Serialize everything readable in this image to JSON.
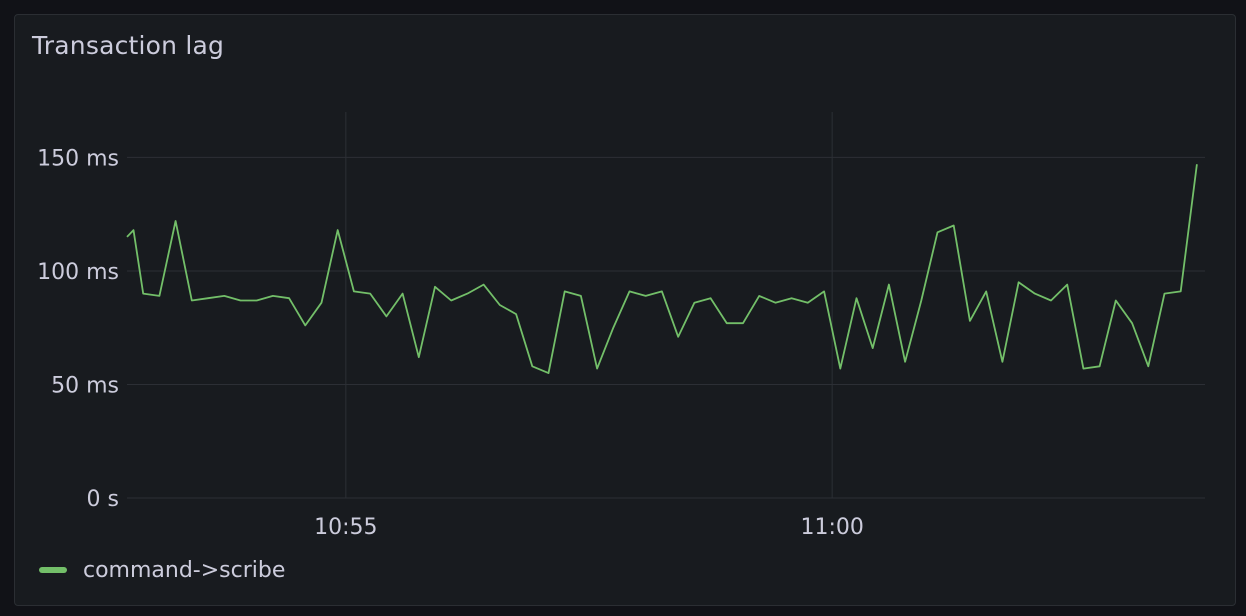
{
  "panel": {
    "title": "Transaction lag"
  },
  "colors": {
    "series": "#73bf69",
    "grid": "#2c2f35",
    "text": "#ccccdc"
  },
  "chart_data": {
    "type": "line",
    "title": "Transaction lag",
    "xlabel": "",
    "ylabel": "",
    "ylim": [
      0,
      170
    ],
    "yticks": [
      {
        "value": 0,
        "label": "0 s"
      },
      {
        "value": 50,
        "label": "50 ms"
      },
      {
        "value": 100,
        "label": "100 ms"
      },
      {
        "value": 150,
        "label": "150 ms"
      }
    ],
    "xlim": [
      "10:52:45",
      "10:63:50"
    ],
    "xticks": [
      {
        "value": "10:55",
        "label": "10:55"
      },
      {
        "value": "11:00",
        "label": "11:00"
      }
    ],
    "grid": true,
    "legend": "bottom-left",
    "series": [
      {
        "name": "command->scribe",
        "color": "#73bf69",
        "points": [
          [
            "10:52:45",
            115
          ],
          [
            "10:52:49",
            118
          ],
          [
            "10:52:55",
            90
          ],
          [
            "10:53:05",
            89
          ],
          [
            "10:53:15",
            122
          ],
          [
            "10:53:25",
            87
          ],
          [
            "10:53:35",
            88
          ],
          [
            "10:53:45",
            89
          ],
          [
            "10:53:55",
            87
          ],
          [
            "10:54:05",
            87
          ],
          [
            "10:54:15",
            89
          ],
          [
            "10:54:25",
            88
          ],
          [
            "10:54:35",
            76
          ],
          [
            "10:54:45",
            86
          ],
          [
            "10:54:55",
            118
          ],
          [
            "10:55:05",
            91
          ],
          [
            "10:55:15",
            90
          ],
          [
            "10:55:25",
            80
          ],
          [
            "10:55:35",
            90
          ],
          [
            "10:55:45",
            62
          ],
          [
            "10:55:55",
            93
          ],
          [
            "10:56:05",
            87
          ],
          [
            "10:56:15",
            90
          ],
          [
            "10:56:25",
            94
          ],
          [
            "10:56:35",
            85
          ],
          [
            "10:56:45",
            81
          ],
          [
            "10:56:55",
            58
          ],
          [
            "10:57:05",
            55
          ],
          [
            "10:57:15",
            91
          ],
          [
            "10:57:25",
            89
          ],
          [
            "10:57:35",
            57
          ],
          [
            "10:57:45",
            75
          ],
          [
            "10:57:55",
            91
          ],
          [
            "10:58:05",
            89
          ],
          [
            "10:58:15",
            91
          ],
          [
            "10:58:25",
            71
          ],
          [
            "10:58:35",
            86
          ],
          [
            "10:58:45",
            88
          ],
          [
            "10:58:55",
            77
          ],
          [
            "10:59:05",
            77
          ],
          [
            "10:59:15",
            89
          ],
          [
            "10:59:25",
            86
          ],
          [
            "10:59:35",
            88
          ],
          [
            "10:59:45",
            86
          ],
          [
            "10:59:55",
            91
          ],
          [
            "11:00:05",
            57
          ],
          [
            "11:00:15",
            88
          ],
          [
            "11:00:25",
            66
          ],
          [
            "11:00:35",
            94
          ],
          [
            "11:00:45",
            60
          ],
          [
            "11:00:55",
            87
          ],
          [
            "11:01:05",
            117
          ],
          [
            "11:01:15",
            120
          ],
          [
            "11:01:25",
            78
          ],
          [
            "11:01:35",
            91
          ],
          [
            "11:01:45",
            60
          ],
          [
            "11:01:55",
            95
          ],
          [
            "11:02:05",
            90
          ],
          [
            "11:02:15",
            87
          ],
          [
            "11:02:25",
            94
          ],
          [
            "11:02:35",
            57
          ],
          [
            "11:02:45",
            58
          ],
          [
            "11:02:55",
            87
          ],
          [
            "11:03:05",
            77
          ],
          [
            "11:03:15",
            58
          ],
          [
            "11:03:25",
            90
          ],
          [
            "11:03:35",
            91
          ],
          [
            "11:03:45",
            147
          ]
        ]
      }
    ]
  }
}
